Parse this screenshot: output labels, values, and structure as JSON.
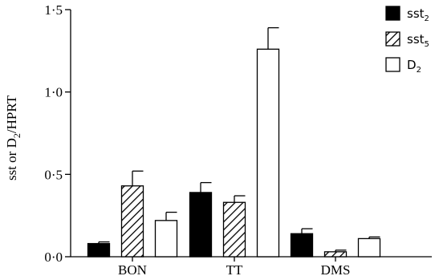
{
  "chart_data": {
    "type": "bar",
    "ylabel": {
      "main": "sst or D",
      "sub": "2",
      "tail": "/HPRT"
    },
    "ylim": [
      0,
      1.5
    ],
    "yticks": [
      {
        "value": 0,
        "label": "0·0"
      },
      {
        "value": 0.5,
        "label": "0·5"
      },
      {
        "value": 1.0,
        "label": "1·0"
      },
      {
        "value": 1.5,
        "label": "1·5"
      }
    ],
    "categories": [
      "BON",
      "TT",
      "DMS"
    ],
    "legend_position": "top-right",
    "series": [
      {
        "name": "sst",
        "sub": "2",
        "fill": "solid",
        "color": "#000000",
        "values": [
          0.08,
          0.39,
          0.14
        ],
        "errors": [
          0.01,
          0.06,
          0.03
        ]
      },
      {
        "name": "sst",
        "sub": "5",
        "fill": "hatched",
        "color": "#000000",
        "values": [
          0.43,
          0.33,
          0.03
        ],
        "errors": [
          0.09,
          0.04,
          0.01
        ]
      },
      {
        "name": "D",
        "sub": "2",
        "fill": "open",
        "color": "#ffffff",
        "values": [
          0.22,
          1.26,
          0.11
        ],
        "errors": [
          0.05,
          0.13,
          0.01
        ]
      }
    ]
  }
}
